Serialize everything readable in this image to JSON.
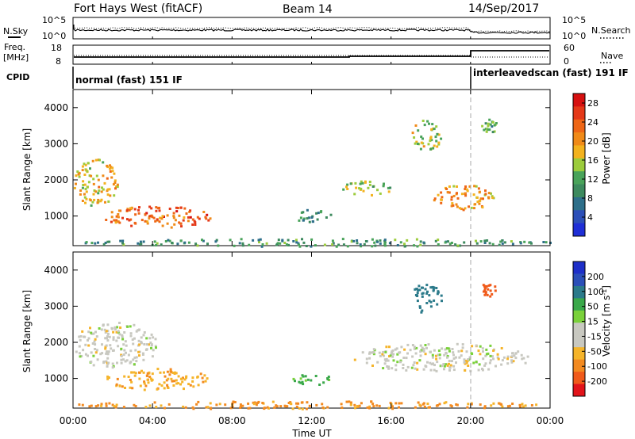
{
  "header": {
    "site": "Fort Hays West (fitACF)",
    "beam": "Beam 14",
    "date": "14/Sep/2017"
  },
  "top_panels": {
    "nsky_label": "N.Sky",
    "nsearch_label": "N.Search",
    "noise_ticks": [
      "10^5",
      "10^0"
    ],
    "freq_label_1": "Freq.",
    "freq_label_2": "[MHz]",
    "freq_ticks": [
      "18",
      "8"
    ],
    "nave_label": "Nave",
    "nave_ticks": [
      "60",
      "0"
    ],
    "cpid_label": "CPID",
    "cpid_mode_1": "normal (fast) 151 IF",
    "cpid_mode_2": "interleavedscan (fast) 191 IF"
  },
  "x_axis": {
    "label": "Time UT",
    "ticks": [
      "00:00",
      "04:00",
      "08:00",
      "12:00",
      "16:00",
      "20:00",
      "00:00"
    ]
  },
  "y_axis": {
    "label": "Slant Range [km]",
    "ticks": [
      "1000",
      "2000",
      "3000",
      "4000"
    ]
  },
  "colors": {
    "power": [
      "#1f2fd6",
      "#2c4fb8",
      "#2e6f8a",
      "#3d8a5e",
      "#49a35a",
      "#9ccc3c",
      "#f3b21e",
      "#f08a18",
      "#ee6616",
      "#e43818",
      "#d61010"
    ],
    "velocity": [
      "#e2141a",
      "#f05a1a",
      "#f38a20",
      "#f5b42a",
      "#c8c8c0",
      "#c8c8c0",
      "#7ad13a",
      "#3aa84a",
      "#2b7a8a",
      "#2b4fb8",
      "#1e2fc8"
    ]
  },
  "chart_data": [
    {
      "type": "heatmap",
      "title": "",
      "xlabel": "Time UT",
      "ylabel": "Slant Range [km]",
      "xlim_hours": [
        0,
        24
      ],
      "ylim": [
        180,
        4500
      ],
      "colorbar": {
        "label": "Power [dB]",
        "ticks": [
          4,
          8,
          12,
          16,
          20,
          24,
          28
        ],
        "range": [
          0,
          30
        ]
      },
      "regions": [
        {
          "t": [
            0.0,
            2.3
          ],
          "r": [
            1300,
            2600
          ],
          "v": 18
        },
        {
          "t": [
            1.5,
            7.0
          ],
          "r": [
            700,
            1300
          ],
          "v": 24
        },
        {
          "t": [
            0.0,
            24.0
          ],
          "r": [
            180,
            400
          ],
          "v": 10
        },
        {
          "t": [
            11.0,
            13.0
          ],
          "r": [
            850,
            1200
          ],
          "v": 8
        },
        {
          "t": [
            13.5,
            16.0
          ],
          "r": [
            1600,
            2000
          ],
          "v": 15
        },
        {
          "t": [
            18.0,
            21.2
          ],
          "r": [
            1200,
            1900
          ],
          "v": 20
        },
        {
          "t": [
            17.0,
            18.5
          ],
          "r": [
            2800,
            3700
          ],
          "v": 16
        },
        {
          "t": [
            20.5,
            21.3
          ],
          "r": [
            3300,
            3700
          ],
          "v": 12
        }
      ]
    },
    {
      "type": "heatmap",
      "title": "",
      "xlabel": "Time UT",
      "ylabel": "Slant Range [km]",
      "xlim_hours": [
        0,
        24
      ],
      "ylim": [
        180,
        4500
      ],
      "colorbar": {
        "label": "Velocity [m s^-1]",
        "ticks": [
          -200,
          -100,
          -50,
          -15,
          15,
          50,
          100,
          200
        ]
      },
      "regions": [
        {
          "t": [
            0.0,
            4.2
          ],
          "r": [
            1300,
            2600
          ],
          "v": 0
        },
        {
          "t": [
            1.5,
            6.8
          ],
          "r": [
            700,
            1300
          ],
          "v": -40
        },
        {
          "t": [
            0.0,
            24.0
          ],
          "r": [
            180,
            400
          ],
          "v": -60
        },
        {
          "t": [
            11.0,
            13.0
          ],
          "r": [
            850,
            1150
          ],
          "v": 60
        },
        {
          "t": [
            14.0,
            23.0
          ],
          "r": [
            1200,
            2000
          ],
          "v": 0
        },
        {
          "t": [
            17.0,
            18.5
          ],
          "r": [
            2800,
            3700
          ],
          "v": 160
        },
        {
          "t": [
            20.5,
            21.3
          ],
          "r": [
            3300,
            3700
          ],
          "v": -180
        }
      ]
    }
  ]
}
